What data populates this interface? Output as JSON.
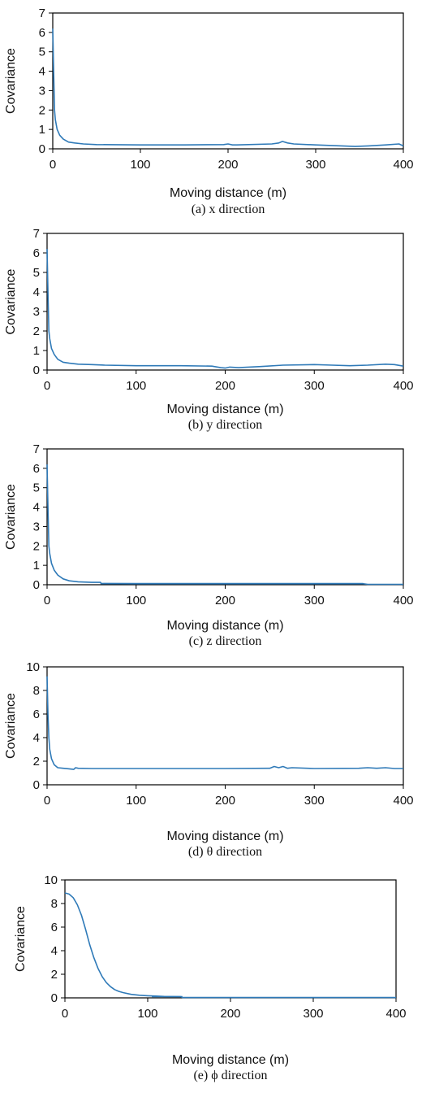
{
  "chart_data": [
    {
      "type": "line",
      "caption": "(a)  x  direction",
      "xlabel": "Moving distance (m)",
      "ylabel": "Covariance",
      "xlim": [
        0,
        400
      ],
      "ylim": [
        0,
        7
      ],
      "xticks": [
        "0",
        "100",
        "200",
        "300",
        "400"
      ],
      "yticks": [
        "0",
        "1",
        "2",
        "3",
        "4",
        "5",
        "6",
        "7"
      ],
      "grid": false,
      "series": [
        {
          "color": "#2f7ab8",
          "x": [
            0,
            1,
            2,
            3,
            5,
            8,
            12,
            18,
            25,
            35,
            50,
            100,
            150,
            195,
            200,
            205,
            210,
            250,
            258,
            262,
            268,
            275,
            300,
            330,
            345,
            360,
            380,
            395,
            400
          ],
          "y": [
            6.2,
            4.0,
            2.0,
            1.5,
            1.0,
            0.7,
            0.5,
            0.35,
            0.3,
            0.25,
            0.22,
            0.2,
            0.2,
            0.22,
            0.25,
            0.2,
            0.2,
            0.25,
            0.3,
            0.38,
            0.3,
            0.25,
            0.2,
            0.15,
            0.12,
            0.15,
            0.2,
            0.25,
            0.15
          ]
        }
      ]
    },
    {
      "type": "line",
      "caption": "(b)  y  direction",
      "xlabel": "Moving distance (m)",
      "ylabel": "Covariance",
      "xlim": [
        0,
        400
      ],
      "ylim": [
        0,
        7
      ],
      "xticks": [
        "0",
        "100",
        "200",
        "300",
        "400"
      ],
      "yticks": [
        "0",
        "1",
        "2",
        "3",
        "4",
        "5",
        "6",
        "7"
      ],
      "grid": false,
      "series": [
        {
          "color": "#2f7ab8",
          "x": [
            0,
            1,
            2,
            3,
            5,
            8,
            12,
            18,
            25,
            35,
            50,
            65,
            100,
            150,
            185,
            195,
            200,
            205,
            215,
            240,
            265,
            300,
            320,
            340,
            360,
            380,
            390,
            400
          ],
          "y": [
            6.2,
            4.0,
            2.0,
            1.6,
            1.1,
            0.8,
            0.55,
            0.4,
            0.35,
            0.3,
            0.28,
            0.25,
            0.22,
            0.22,
            0.2,
            0.12,
            0.1,
            0.15,
            0.12,
            0.18,
            0.25,
            0.28,
            0.25,
            0.22,
            0.25,
            0.3,
            0.28,
            0.2
          ]
        }
      ]
    },
    {
      "type": "line",
      "caption": "(c)  z  direction",
      "xlabel": "Moving distance (m)",
      "ylabel": "Covariance",
      "xlim": [
        0,
        400
      ],
      "ylim": [
        0,
        7
      ],
      "xticks": [
        "0",
        "100",
        "200",
        "300",
        "400"
      ],
      "yticks": [
        "0",
        "1",
        "2",
        "3",
        "4",
        "5",
        "6",
        "7"
      ],
      "grid": false,
      "series": [
        {
          "color": "#2f7ab8",
          "x": [
            0,
            1,
            2,
            3,
            5,
            8,
            12,
            18,
            25,
            35,
            50,
            60,
            61,
            100,
            200,
            300,
            355,
            360,
            400
          ],
          "y": [
            6.2,
            4.0,
            2.0,
            1.6,
            1.1,
            0.75,
            0.5,
            0.3,
            0.2,
            0.15,
            0.12,
            0.12,
            0.06,
            0.05,
            0.05,
            0.05,
            0.05,
            0.02,
            0.02
          ]
        },
        {
          "color": "#16334d",
          "x": [
            60,
            355
          ],
          "y": [
            0.06,
            0.06
          ]
        }
      ]
    },
    {
      "type": "line",
      "caption": "(d)  θ  direction",
      "xlabel": "Moving distance (m)",
      "ylabel": "Covariance",
      "xlim": [
        0,
        400
      ],
      "ylim": [
        0,
        10
      ],
      "xticks": [
        "0",
        "100",
        "200",
        "300",
        "400"
      ],
      "yticks": [
        "0",
        "2",
        "4",
        "6",
        "8",
        "10"
      ],
      "grid": false,
      "series": [
        {
          "color": "#2f7ab8",
          "x": [
            0,
            1,
            2,
            3,
            5,
            8,
            12,
            18,
            25,
            30,
            32,
            35,
            50,
            100,
            200,
            250,
            255,
            260,
            265,
            270,
            275,
            300,
            350,
            360,
            370,
            380,
            390,
            400
          ],
          "y": [
            9.2,
            6.0,
            4.0,
            3.0,
            2.2,
            1.7,
            1.45,
            1.4,
            1.35,
            1.3,
            1.45,
            1.4,
            1.38,
            1.38,
            1.38,
            1.4,
            1.55,
            1.45,
            1.55,
            1.4,
            1.45,
            1.38,
            1.4,
            1.45,
            1.4,
            1.45,
            1.38,
            1.38
          ]
        }
      ]
    },
    {
      "type": "line",
      "caption": "(e)  ϕ  direction",
      "xlabel": "Moving distance (m)",
      "ylabel": "Covariance",
      "xlim": [
        0,
        400
      ],
      "ylim": [
        0,
        10
      ],
      "xticks": [
        "0",
        "100",
        "200",
        "300",
        "400"
      ],
      "yticks": [
        "0",
        "2",
        "4",
        "6",
        "8",
        "10"
      ],
      "grid": false,
      "series": [
        {
          "color": "#2f7ab8",
          "x": [
            0,
            5,
            10,
            15,
            20,
            25,
            30,
            35,
            40,
            45,
            50,
            55,
            60,
            65,
            70,
            80,
            90,
            100,
            110,
            120,
            140,
            142,
            200,
            300,
            400
          ],
          "y": [
            8.9,
            8.8,
            8.5,
            7.9,
            7.0,
            5.8,
            4.5,
            3.4,
            2.5,
            1.8,
            1.3,
            0.95,
            0.7,
            0.55,
            0.45,
            0.3,
            0.22,
            0.18,
            0.15,
            0.12,
            0.1,
            0.03,
            0.03,
            0.03,
            0.03
          ]
        },
        {
          "color": "#16334d",
          "x": [
            105,
            142
          ],
          "y": [
            0.1,
            0.1
          ]
        }
      ]
    }
  ]
}
